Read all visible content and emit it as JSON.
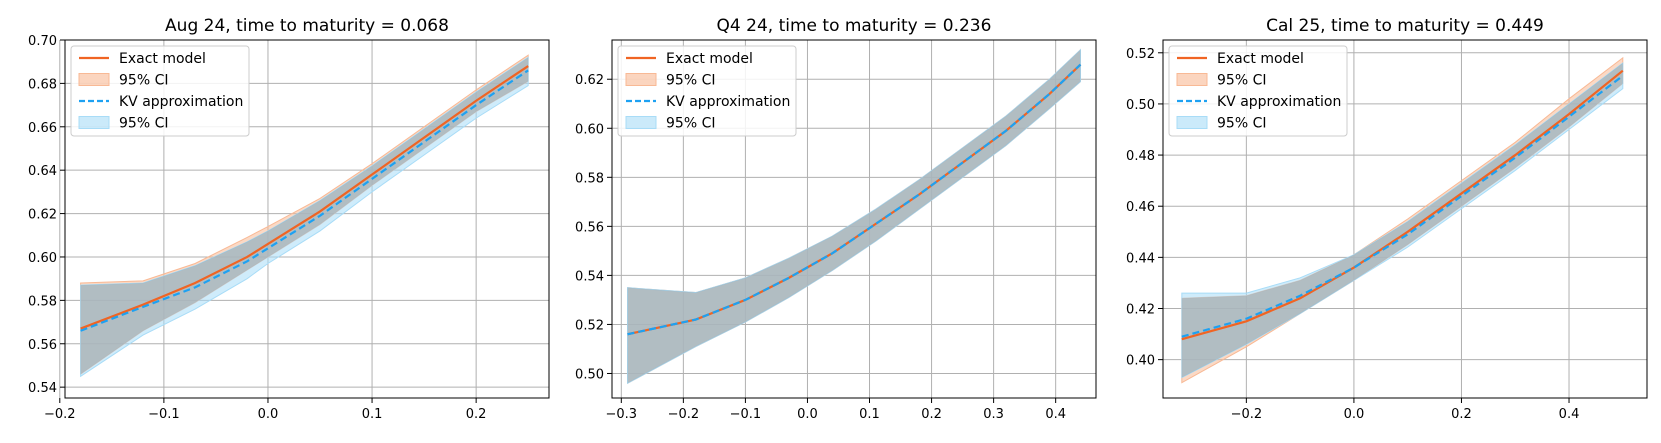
{
  "colors": {
    "exact": "#f06423",
    "exact_fill": "#f8b995",
    "kv": "#1da1f2",
    "kv_fill": "#a8dcf7",
    "overlap": "#9aa4aa",
    "grid": "#b0b0b0"
  },
  "chart_data": [
    {
      "type": "line",
      "title": "Aug 24, time to maturity = 0.068",
      "xlabel": "",
      "ylabel": "",
      "xlim": [
        -0.195,
        0.27
      ],
      "ylim": [
        0.535,
        0.7
      ],
      "xticks": [
        -0.2,
        -0.1,
        0.0,
        0.1,
        0.2
      ],
      "xtick_labels": [
        "−0.2",
        "−0.1",
        "0.0",
        "0.1",
        "0.2"
      ],
      "yticks": [
        0.54,
        0.56,
        0.58,
        0.6,
        0.62,
        0.64,
        0.66,
        0.68,
        0.7
      ],
      "ytick_labels": [
        "0.54",
        "0.56",
        "0.58",
        "0.60",
        "0.62",
        "0.64",
        "0.66",
        "0.68",
        "0.70"
      ],
      "grid": true,
      "legend_position": "top-left",
      "legend": [
        "Exact model",
        "95% CI",
        "KV approximation",
        "95% CI"
      ],
      "x": [
        -0.18,
        -0.12,
        -0.07,
        -0.02,
        0.0,
        0.05,
        0.1,
        0.15,
        0.2,
        0.25
      ],
      "series": [
        {
          "name": "Exact model",
          "values": [
            0.567,
            0.578,
            0.588,
            0.6,
            0.606,
            0.621,
            0.638,
            0.655,
            0.672,
            0.688
          ],
          "lower": [
            0.546,
            0.566,
            0.579,
            0.594,
            0.6,
            0.615,
            0.633,
            0.65,
            0.667,
            0.681
          ],
          "upper": [
            0.588,
            0.589,
            0.597,
            0.609,
            0.614,
            0.627,
            0.643,
            0.66,
            0.677,
            0.693
          ]
        },
        {
          "name": "KV approximation",
          "values": [
            0.566,
            0.577,
            0.586,
            0.598,
            0.604,
            0.619,
            0.636,
            0.653,
            0.67,
            0.686
          ],
          "lower": [
            0.545,
            0.564,
            0.576,
            0.59,
            0.597,
            0.612,
            0.63,
            0.647,
            0.664,
            0.679
          ],
          "upper": [
            0.587,
            0.588,
            0.596,
            0.607,
            0.612,
            0.626,
            0.642,
            0.659,
            0.676,
            0.692
          ]
        }
      ]
    },
    {
      "type": "line",
      "title": "Q4 24, time to maturity = 0.236",
      "xlabel": "",
      "ylabel": "",
      "xlim": [
        -0.315,
        0.465
      ],
      "ylim": [
        0.49,
        0.636
      ],
      "xticks": [
        -0.3,
        -0.2,
        -0.1,
        0.0,
        0.1,
        0.2,
        0.3,
        0.4
      ],
      "xtick_labels": [
        "−0.3",
        "−0.2",
        "−0.1",
        "0.0",
        "0.1",
        "0.2",
        "0.3",
        "0.4"
      ],
      "yticks": [
        0.5,
        0.52,
        0.54,
        0.56,
        0.58,
        0.6,
        0.62
      ],
      "ytick_labels": [
        "0.50",
        "0.52",
        "0.54",
        "0.56",
        "0.58",
        "0.60",
        "0.62"
      ],
      "grid": true,
      "legend_position": "top-left",
      "legend": [
        "Exact model",
        "95% CI",
        "KV approximation",
        "95% CI"
      ],
      "x": [
        -0.29,
        -0.18,
        -0.1,
        -0.03,
        0.04,
        0.11,
        0.18,
        0.25,
        0.32,
        0.39,
        0.44
      ],
      "series": [
        {
          "name": "Exact model",
          "values": [
            0.516,
            0.522,
            0.53,
            0.539,
            0.549,
            0.561,
            0.573,
            0.586,
            0.599,
            0.614,
            0.626
          ],
          "lower": [
            0.496,
            0.511,
            0.521,
            0.531,
            0.542,
            0.554,
            0.567,
            0.58,
            0.593,
            0.608,
            0.619
          ],
          "upper": [
            0.535,
            0.533,
            0.539,
            0.547,
            0.556,
            0.567,
            0.579,
            0.592,
            0.605,
            0.62,
            0.632
          ]
        },
        {
          "name": "KV approximation",
          "values": [
            0.516,
            0.522,
            0.53,
            0.539,
            0.549,
            0.561,
            0.573,
            0.586,
            0.599,
            0.614,
            0.626
          ],
          "lower": [
            0.496,
            0.511,
            0.521,
            0.531,
            0.542,
            0.554,
            0.567,
            0.58,
            0.593,
            0.608,
            0.619
          ],
          "upper": [
            0.535,
            0.533,
            0.539,
            0.547,
            0.556,
            0.567,
            0.579,
            0.592,
            0.605,
            0.62,
            0.632
          ]
        }
      ]
    },
    {
      "type": "line",
      "title": "Cal 25, time to maturity = 0.449",
      "xlabel": "",
      "ylabel": "",
      "xlim": [
        -0.355,
        0.545
      ],
      "ylim": [
        0.385,
        0.525
      ],
      "xticks": [
        -0.2,
        0.0,
        0.2,
        0.4
      ],
      "xtick_labels": [
        "−0.2",
        "0.0",
        "0.2",
        "0.4"
      ],
      "yticks": [
        0.4,
        0.42,
        0.44,
        0.46,
        0.48,
        0.5,
        0.52
      ],
      "ytick_labels": [
        "0.40",
        "0.42",
        "0.44",
        "0.46",
        "0.48",
        "0.50",
        "0.52"
      ],
      "grid": true,
      "legend_position": "top-left",
      "legend": [
        "Exact model",
        "95% CI",
        "KV approximation",
        "95% CI"
      ],
      "x": [
        -0.32,
        -0.2,
        -0.1,
        0.0,
        0.1,
        0.2,
        0.3,
        0.4,
        0.5
      ],
      "series": [
        {
          "name": "Exact model",
          "values": [
            0.408,
            0.415,
            0.424,
            0.436,
            0.45,
            0.465,
            0.48,
            0.496,
            0.513
          ],
          "lower": [
            0.391,
            0.405,
            0.418,
            0.431,
            0.445,
            0.46,
            0.475,
            0.491,
            0.508
          ],
          "upper": [
            0.424,
            0.425,
            0.431,
            0.441,
            0.455,
            0.47,
            0.485,
            0.502,
            0.518
          ]
        },
        {
          "name": "KV approximation",
          "values": [
            0.409,
            0.416,
            0.425,
            0.436,
            0.449,
            0.464,
            0.479,
            0.495,
            0.511
          ],
          "lower": [
            0.393,
            0.406,
            0.418,
            0.431,
            0.444,
            0.459,
            0.474,
            0.49,
            0.506
          ],
          "upper": [
            0.426,
            0.426,
            0.432,
            0.441,
            0.454,
            0.469,
            0.484,
            0.5,
            0.516
          ]
        }
      ]
    }
  ]
}
